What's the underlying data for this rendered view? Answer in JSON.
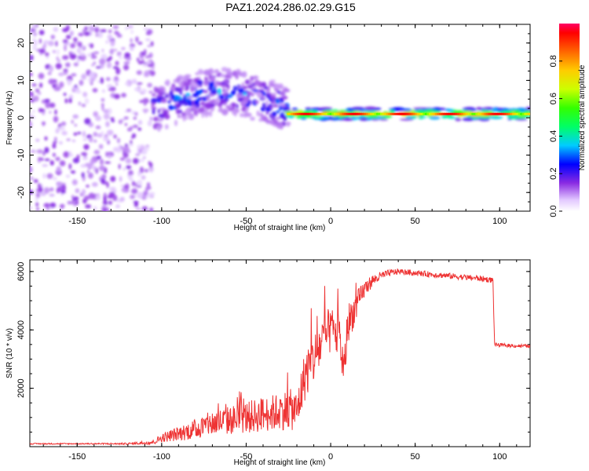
{
  "title": "PAZ1.2024.286.02.29.G15",
  "chart_data": [
    {
      "type": "heatmap",
      "xlabel": "Height of straight line (km)",
      "ylabel": "Frequency (Hz)",
      "xlim": [
        -178,
        118
      ],
      "ylim": [
        -25,
        25
      ],
      "xticks": [
        -150,
        -100,
        -50,
        0,
        50,
        100
      ],
      "yticks": [
        -20,
        -10,
        0,
        10,
        20
      ],
      "colorbar": {
        "label": "Normalized spectral amplitude",
        "range": [
          0,
          1
        ],
        "ticks": [
          "0.0",
          "0.2",
          "0.4",
          "0.6",
          "0.8"
        ]
      },
      "regions": [
        {
          "x": [
            -178,
            -105
          ],
          "freq_spread": 25,
          "amplitude": 0.1,
          "description_visible": false
        },
        {
          "x": [
            -105,
            -25
          ],
          "freq_center": [
            2,
            7
          ],
          "freq_spread": 6,
          "amplitude": 0.25
        },
        {
          "x": [
            -25,
            118
          ],
          "freq_center": [
            1,
            1
          ],
          "freq_spread": 1.5,
          "amplitude": 0.7
        }
      ]
    },
    {
      "type": "line",
      "xlabel": "Height of straight line (km)",
      "ylabel": "SNR (10 * v/v)",
      "xlim": [
        -178,
        118
      ],
      "ylim": [
        0,
        6400
      ],
      "xticks": [
        -150,
        -100,
        -50,
        0,
        50,
        100
      ],
      "yticks": [
        2000,
        4000,
        6000
      ],
      "color": "#ee3333",
      "series": [
        {
          "x": [
            -178,
            -150,
            -120,
            -105,
            -100,
            -90,
            -80,
            -70,
            -60,
            -50,
            -40,
            -30,
            -25,
            -20,
            -15,
            -10,
            -5,
            0,
            5,
            8,
            10,
            15,
            20,
            25,
            30,
            35,
            40,
            50,
            60,
            70,
            80,
            90,
            96,
            97,
            100,
            110,
            118
          ],
          "y": [
            100,
            100,
            100,
            150,
            300,
            450,
            600,
            800,
            900,
            1000,
            1100,
            1200,
            1300,
            1200,
            2500,
            3000,
            3600,
            4000,
            3800,
            2500,
            4200,
            4800,
            5400,
            5700,
            5850,
            5950,
            6000,
            5950,
            5900,
            5850,
            5800,
            5750,
            5700,
            3500,
            3480,
            3450,
            3450
          ],
          "noise": [
            20,
            20,
            30,
            80,
            150,
            250,
            350,
            450,
            500,
            550,
            600,
            650,
            700,
            700,
            900,
            900,
            900,
            800,
            800,
            700,
            700,
            500,
            300,
            200,
            150,
            120,
            100,
            100,
            100,
            100,
            100,
            100,
            100,
            60,
            60,
            60,
            60
          ]
        }
      ]
    }
  ]
}
